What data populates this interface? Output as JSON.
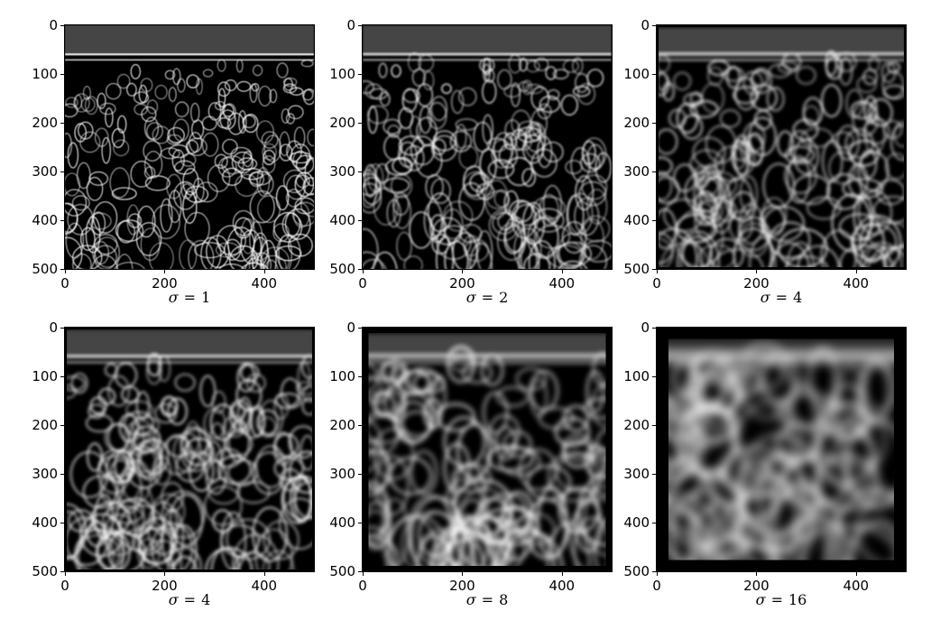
{
  "panels": [
    {
      "caption_symbol": "σ",
      "caption_op": "=",
      "caption_value": "1",
      "pad": 0,
      "blur": 0.6,
      "density": 1.0
    },
    {
      "caption_symbol": "σ",
      "caption_op": "=",
      "caption_value": "2",
      "pad": 0,
      "blur": 1.0,
      "density": 0.85
    },
    {
      "caption_symbol": "σ",
      "caption_op": "=",
      "caption_value": "4",
      "pad": 4,
      "blur": 1.8,
      "density": 0.7
    },
    {
      "caption_symbol": "σ",
      "caption_op": "=",
      "caption_value": "4",
      "pad": 4,
      "blur": 1.8,
      "density": 0.7
    },
    {
      "caption_symbol": "σ",
      "caption_op": "=",
      "caption_value": "8",
      "pad": 12,
      "blur": 3.0,
      "density": 0.5
    },
    {
      "caption_symbol": "σ",
      "caption_op": "=",
      "caption_value": "16",
      "pad": 24,
      "blur": 5.5,
      "density": 0.3
    }
  ],
  "y_ticks": [
    "0",
    "100",
    "200",
    "300",
    "400",
    "500"
  ],
  "x_ticks": [
    "0",
    "200",
    "400"
  ],
  "colors": {
    "background": "#ffffff",
    "image_dark": "#000000",
    "image_light": "#ffffff"
  }
}
